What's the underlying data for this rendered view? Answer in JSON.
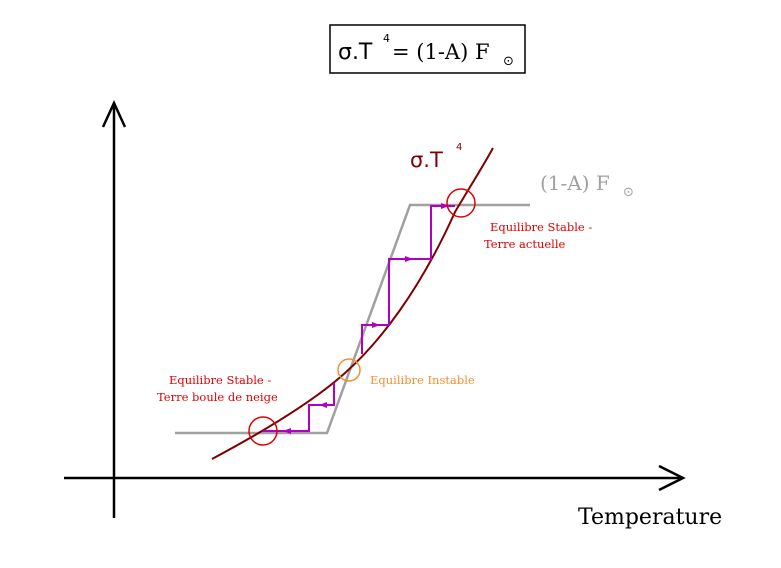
{
  "equation_box": {
    "sigma_t": "σ.T",
    "exp": "4",
    "rest": "= (1-A) F",
    "sun": "⊙"
  },
  "curve_label": {
    "sigma_t": "σ.T",
    "exp": "4"
  },
  "line_label": {
    "text": "(1-A) F",
    "sun": "⊙"
  },
  "axis": {
    "x_label": "Temperature"
  },
  "annotations": {
    "stable_current": {
      "line1": "Equilibre Stable -",
      "line2": "Terre actuelle"
    },
    "unstable": {
      "line1": "Equilibre Instable"
    },
    "stable_snowball": {
      "line1": "Equilibre Stable -",
      "line2": "Terre boule de neige"
    }
  },
  "colors": {
    "axes": "#000000",
    "curve": "#800000",
    "absorbed_line": "#a0a0a0",
    "staircase": "#b000c0",
    "stable_marker": "#e00000",
    "unstable_marker": "#f09030",
    "stable_text": "#e00000",
    "unstable_text": "#f09030"
  }
}
